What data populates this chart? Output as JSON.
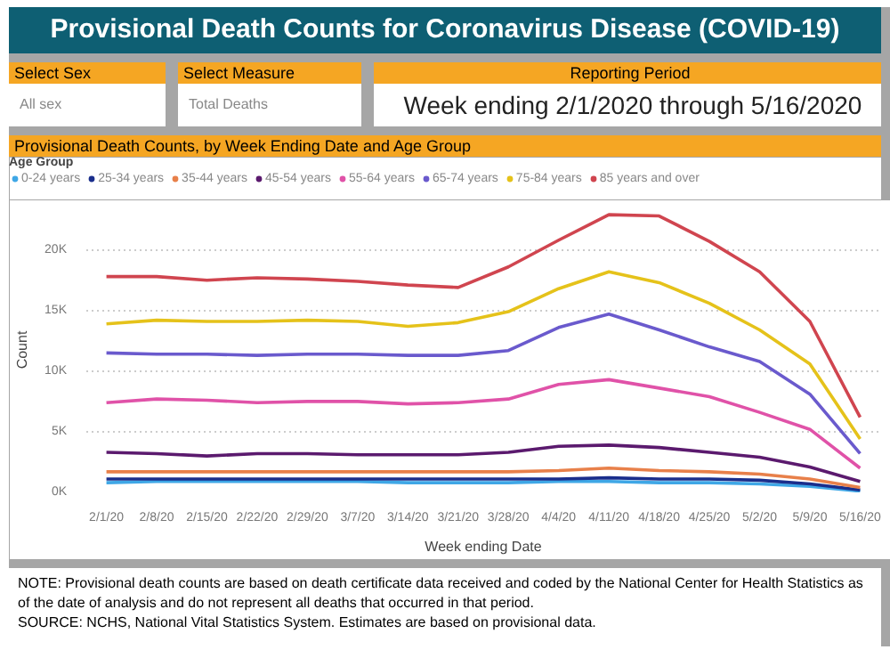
{
  "chart_data": {
    "type": "line",
    "title": "Provisional Death Counts for Coronavirus Disease (COVID-19)",
    "subtitle": "Provisional Death Counts, by Week Ending Date and Age Group",
    "xlabel": "Week ending Date",
    "ylabel": "Count",
    "legend_title": "Age Group",
    "categories": [
      "2/1/20",
      "2/8/20",
      "2/15/20",
      "2/22/20",
      "2/29/20",
      "3/7/20",
      "3/14/20",
      "3/21/20",
      "3/28/20",
      "4/4/20",
      "4/11/20",
      "4/18/20",
      "4/25/20",
      "5/2/20",
      "5/9/20",
      "5/16/20"
    ],
    "series": [
      {
        "name": "0-24 years",
        "color": "#3fa7e6",
        "values": [
          800,
          900,
          900,
          900,
          900,
          900,
          800,
          800,
          800,
          900,
          900,
          800,
          800,
          700,
          500,
          100
        ]
      },
      {
        "name": "25-34 years",
        "color": "#1a2e8c",
        "values": [
          1100,
          1100,
          1100,
          1100,
          1100,
          1100,
          1100,
          1100,
          1100,
          1100,
          1200,
          1100,
          1100,
          1000,
          700,
          200
        ]
      },
      {
        "name": "35-44 years",
        "color": "#e8804a",
        "values": [
          1700,
          1700,
          1700,
          1700,
          1700,
          1700,
          1700,
          1700,
          1700,
          1800,
          2000,
          1800,
          1700,
          1500,
          1100,
          400
        ]
      },
      {
        "name": "45-54 years",
        "color": "#5b1a6e",
        "values": [
          3300,
          3200,
          3000,
          3200,
          3200,
          3100,
          3100,
          3100,
          3300,
          3800,
          3900,
          3700,
          3300,
          2900,
          2100,
          900
        ]
      },
      {
        "name": "55-64 years",
        "color": "#e052a8",
        "values": [
          7400,
          7700,
          7600,
          7400,
          7500,
          7500,
          7300,
          7400,
          7700,
          8900,
          9300,
          8600,
          7900,
          6600,
          5200,
          2000
        ]
      },
      {
        "name": "65-74 years",
        "color": "#6a5acd",
        "values": [
          11500,
          11400,
          11400,
          11300,
          11400,
          11400,
          11300,
          11300,
          11700,
          13600,
          14700,
          13400,
          12000,
          10800,
          8100,
          3200
        ]
      },
      {
        "name": "75-84 years",
        "color": "#e5c21a",
        "values": [
          13900,
          14200,
          14100,
          14100,
          14200,
          14100,
          13700,
          14000,
          14900,
          16800,
          18200,
          17300,
          15600,
          13400,
          10600,
          4400
        ]
      },
      {
        "name": "85 years and over",
        "color": "#d0454f",
        "values": [
          17800,
          17800,
          17500,
          17700,
          17600,
          17400,
          17100,
          16900,
          18600,
          20800,
          22900,
          22800,
          20700,
          18200,
          14100,
          6200
        ]
      }
    ],
    "ylim": [
      0,
      23500
    ],
    "yticks": [
      {
        "value": 0,
        "label": "0K"
      },
      {
        "value": 5000,
        "label": "5K"
      },
      {
        "value": 10000,
        "label": "10K"
      },
      {
        "value": 15000,
        "label": "15K"
      },
      {
        "value": 20000,
        "label": "20K"
      }
    ],
    "grid": "y",
    "legend": "top",
    "marker": "none",
    "line_style": "solid",
    "annotations": [
      "Select Sex",
      "All sex",
      "Select Measure",
      "Total Deaths",
      "Reporting Period",
      "Week ending 2/1/2020 through 5/16/2020",
      "NOTE: Provisional death counts are based on death certificate data received and coded by the National Center for Health Statistics as of the date of analysis and do not represent all deaths that occurred in that period.",
      "SOURCE: NCHS, National Vital Statistics System. Estimates are based on provisional data."
    ]
  }
}
